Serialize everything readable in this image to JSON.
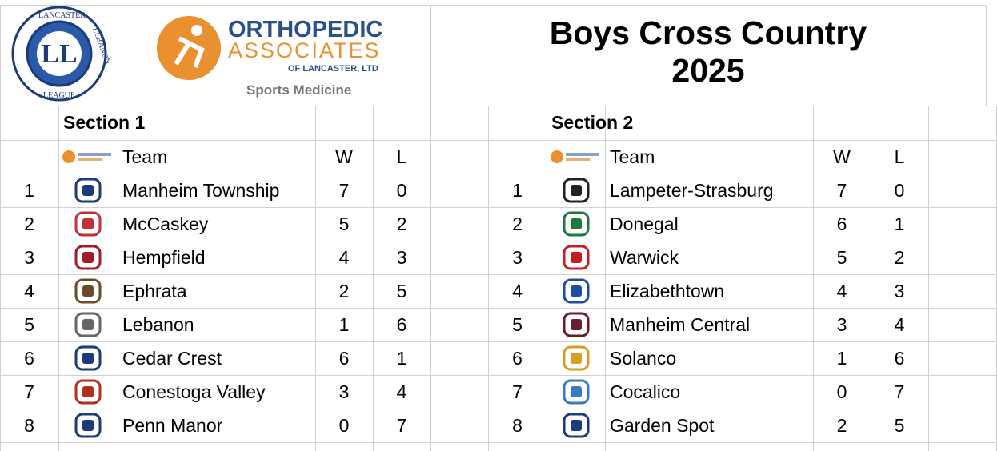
{
  "header": {
    "league_logo": {
      "top": "LANCASTER",
      "right": "LEBANON",
      "bottom": "LEAGUE",
      "monogram": "LL"
    },
    "sponsor": {
      "name_line1": "ORTHOPEDIC",
      "name_line2": "ASSOCIATES",
      "name_line3": "OF LANCASTER, LTD",
      "tagline": "Sports Medicine"
    },
    "title": "Boys Cross Country",
    "subtitle": "2025"
  },
  "sections": [
    {
      "title": "Section 1",
      "columns": [
        "Team",
        "W",
        "L"
      ],
      "rows": [
        {
          "rank": 1,
          "team": "Manheim Township",
          "w": 7,
          "l": 0
        },
        {
          "rank": 2,
          "team": "McCaskey",
          "w": 5,
          "l": 2
        },
        {
          "rank": 3,
          "team": "Hempfield",
          "w": 4,
          "l": 3
        },
        {
          "rank": 4,
          "team": "Ephrata",
          "w": 2,
          "l": 5
        },
        {
          "rank": 5,
          "team": "Lebanon",
          "w": 1,
          "l": 6
        },
        {
          "rank": 6,
          "team": "Cedar Crest",
          "w": 6,
          "l": 1
        },
        {
          "rank": 7,
          "team": "Conestoga Valley",
          "w": 3,
          "l": 4
        },
        {
          "rank": 8,
          "team": "Penn Manor",
          "w": 0,
          "l": 7
        }
      ]
    },
    {
      "title": "Section 2",
      "columns": [
        "Team",
        "W",
        "L"
      ],
      "rows": [
        {
          "rank": 1,
          "team": "Lampeter-Strasburg",
          "w": 7,
          "l": 0
        },
        {
          "rank": 2,
          "team": "Donegal",
          "w": 6,
          "l": 1
        },
        {
          "rank": 3,
          "team": "Warwick",
          "w": 5,
          "l": 2
        },
        {
          "rank": 4,
          "team": "Elizabethtown",
          "w": 4,
          "l": 3
        },
        {
          "rank": 5,
          "team": "Manheim Central",
          "w": 3,
          "l": 4
        },
        {
          "rank": 6,
          "team": "Solanco",
          "w": 1,
          "l": 6
        },
        {
          "rank": 7,
          "team": "Cocalico",
          "w": 0,
          "l": 7
        },
        {
          "rank": 8,
          "team": "Garden Spot",
          "w": 2,
          "l": 5
        }
      ]
    }
  ]
}
